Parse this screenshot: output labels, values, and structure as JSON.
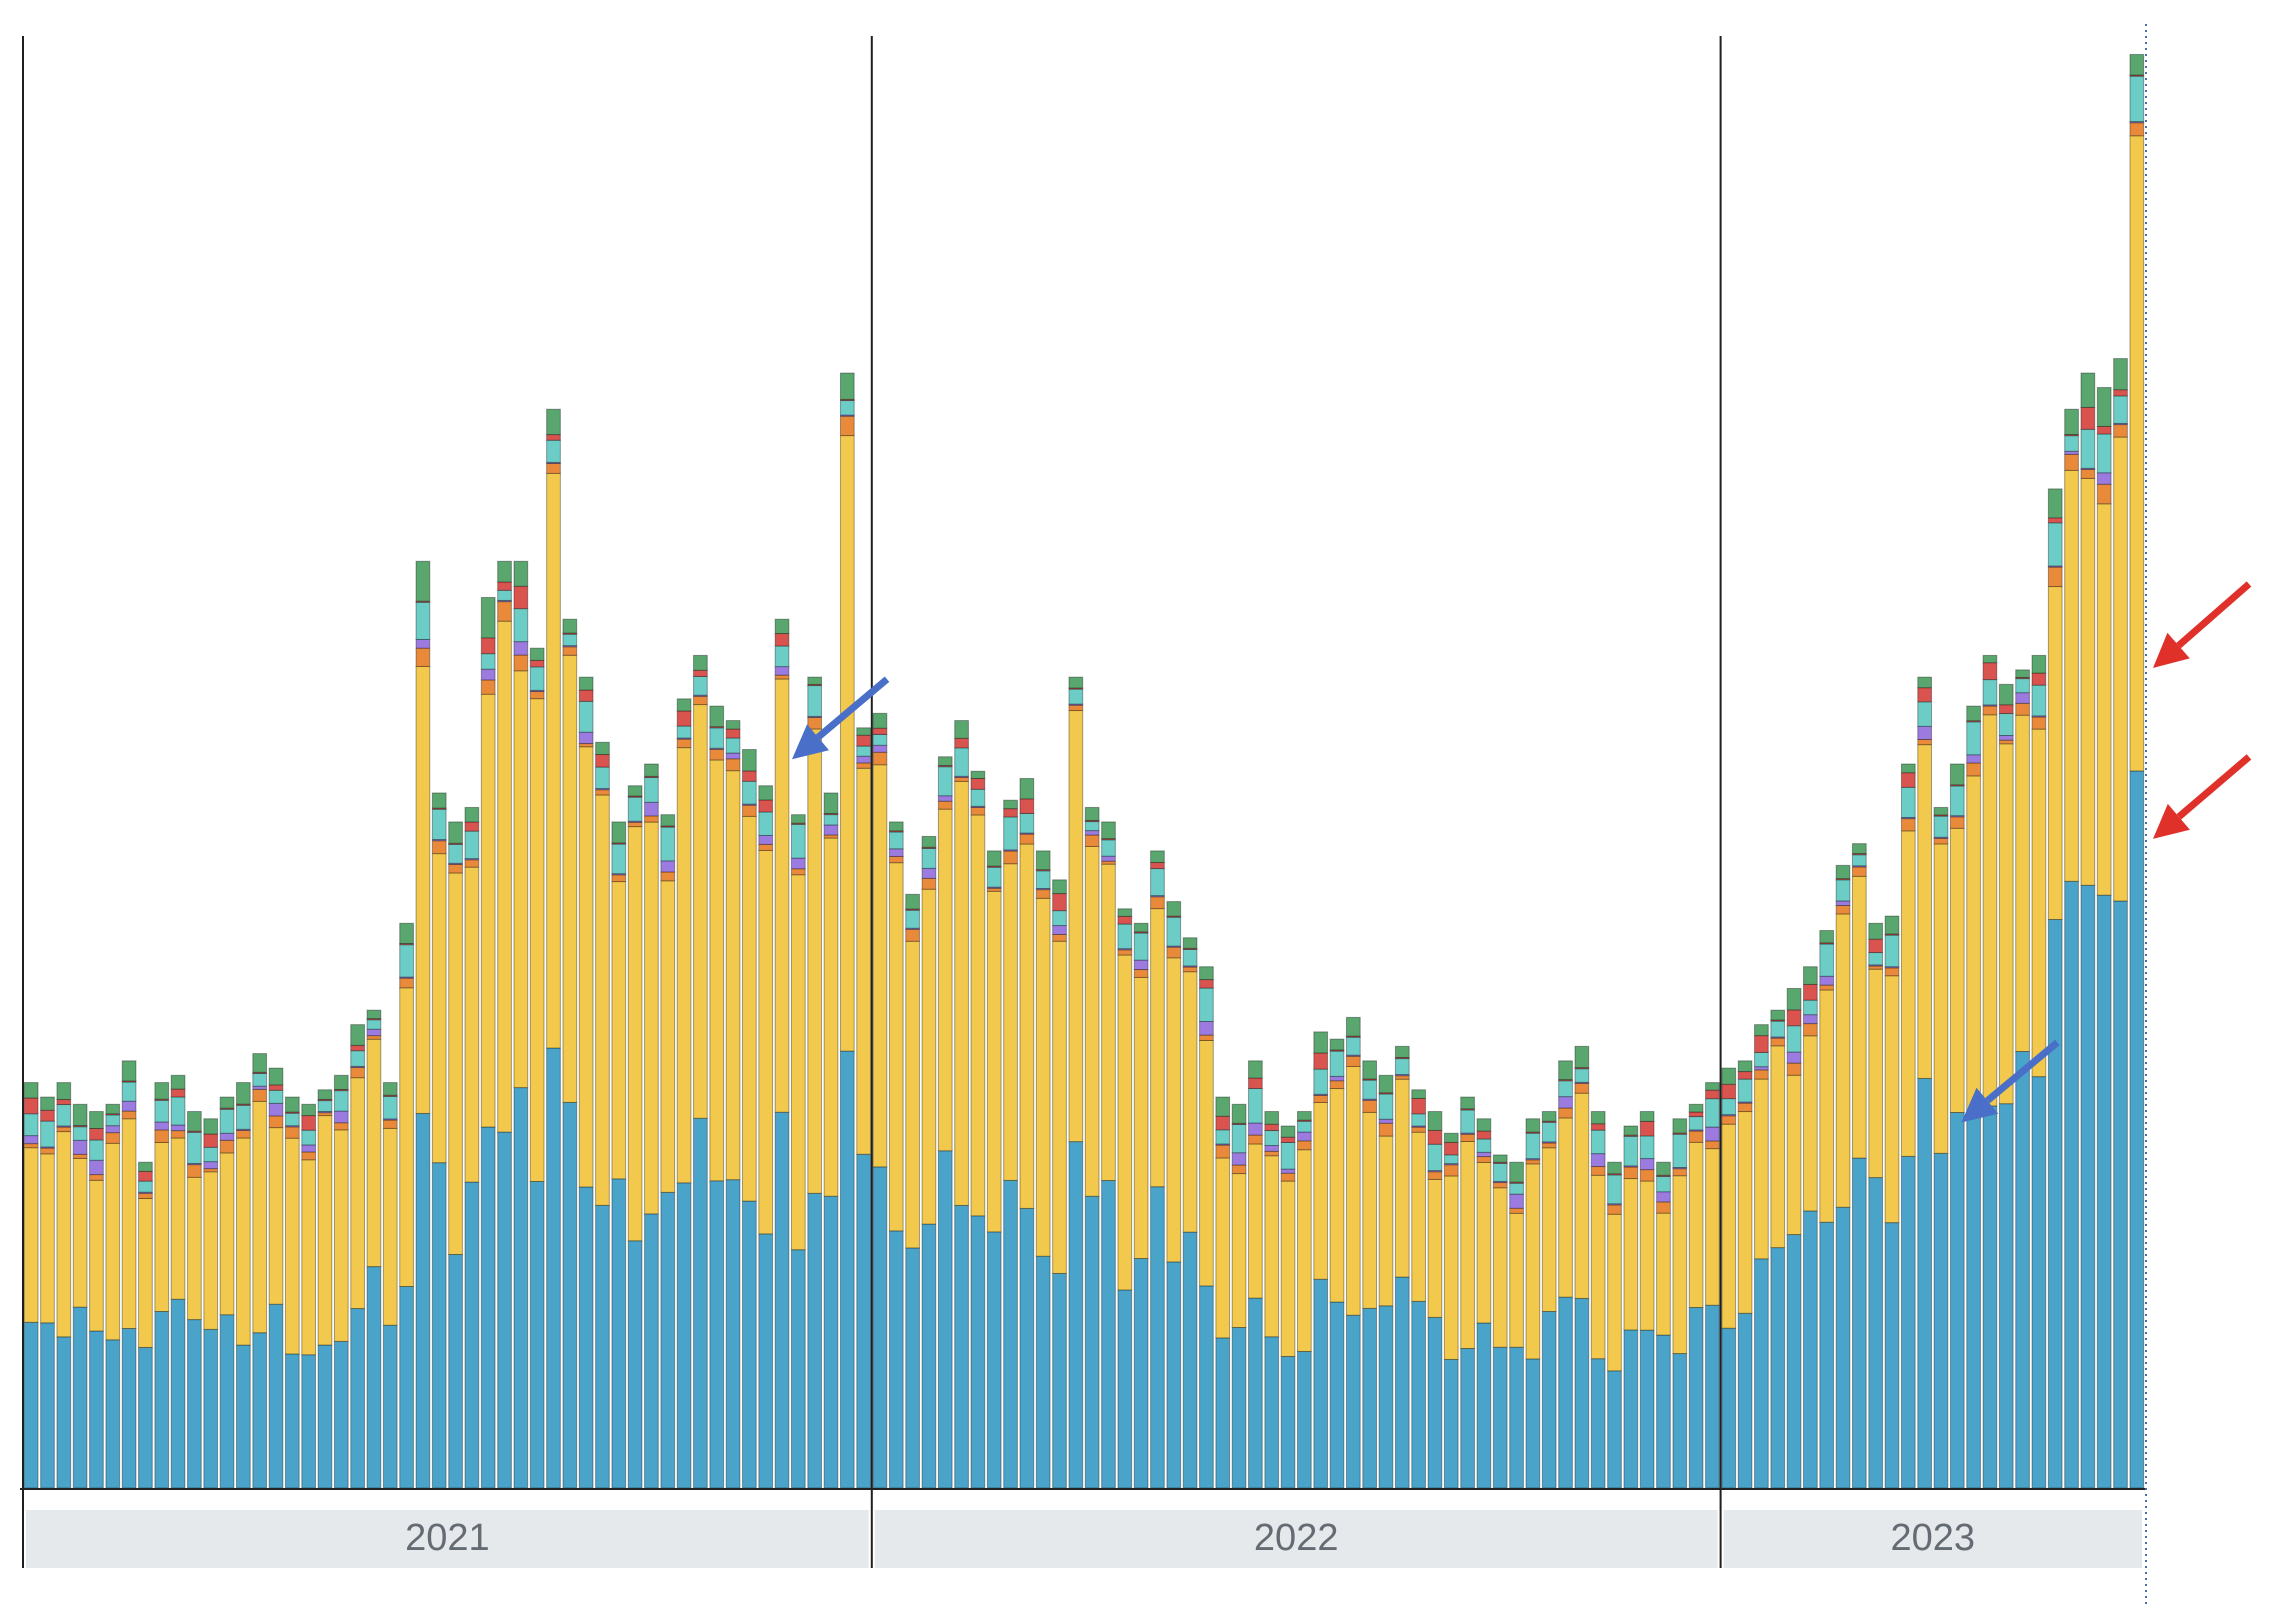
{
  "chart_data": {
    "type": "bar",
    "stacked": true,
    "title": "",
    "xlabel": "",
    "ylabel": "",
    "grid": false,
    "legend": "none",
    "ylim": [
      0,
      1000
    ],
    "year_groups": [
      {
        "label": "2021",
        "start_index": 0,
        "end_index": 51
      },
      {
        "label": "2022",
        "start_index": 52,
        "end_index": 103
      },
      {
        "label": "2023",
        "start_index": 104,
        "end_index": 129
      }
    ],
    "period": {
      "first": "2021-01",
      "last": "2023-06",
      "frequency": "weekly"
    },
    "series_colors": [
      "#4aa3c9",
      "#f2c94c",
      "#e98a3a",
      "#9b7be0",
      "#6cccc6",
      "#d9534f",
      "#5aa66f"
    ],
    "totals": [
      280,
      270,
      280,
      265,
      260,
      265,
      295,
      225,
      280,
      285,
      260,
      255,
      270,
      280,
      300,
      290,
      270,
      265,
      275,
      285,
      320,
      330,
      280,
      390,
      640,
      480,
      460,
      470,
      615,
      640,
      640,
      580,
      745,
      600,
      560,
      515,
      460,
      485,
      500,
      465,
      545,
      575,
      540,
      530,
      510,
      485,
      600,
      465,
      560,
      480,
      770,
      525,
      535,
      460,
      410,
      450,
      505,
      530,
      495,
      440,
      475,
      490,
      440,
      420,
      560,
      470,
      460,
      400,
      390,
      440,
      405,
      380,
      360,
      270,
      265,
      295,
      260,
      250,
      260,
      315,
      310,
      325,
      295,
      285,
      305,
      275,
      260,
      245,
      270,
      255,
      230,
      225,
      255,
      260,
      295,
      305,
      260,
      225,
      250,
      260,
      225,
      255,
      265,
      280,
      290,
      295,
      320,
      330,
      345,
      360,
      385,
      430,
      445,
      390,
      395,
      500,
      560,
      470,
      500,
      540,
      575,
      555,
      565,
      575,
      690,
      745,
      770,
      760,
      780,
      990
    ],
    "annotations": [
      {
        "color": "blue",
        "bar_index": 46,
        "band": "top"
      },
      {
        "color": "blue",
        "bar_index": 118,
        "band": "base"
      },
      {
        "color": "red",
        "bar_index": 129,
        "band": "top"
      },
      {
        "color": "red",
        "bar_index": 129,
        "band": "base"
      }
    ]
  }
}
